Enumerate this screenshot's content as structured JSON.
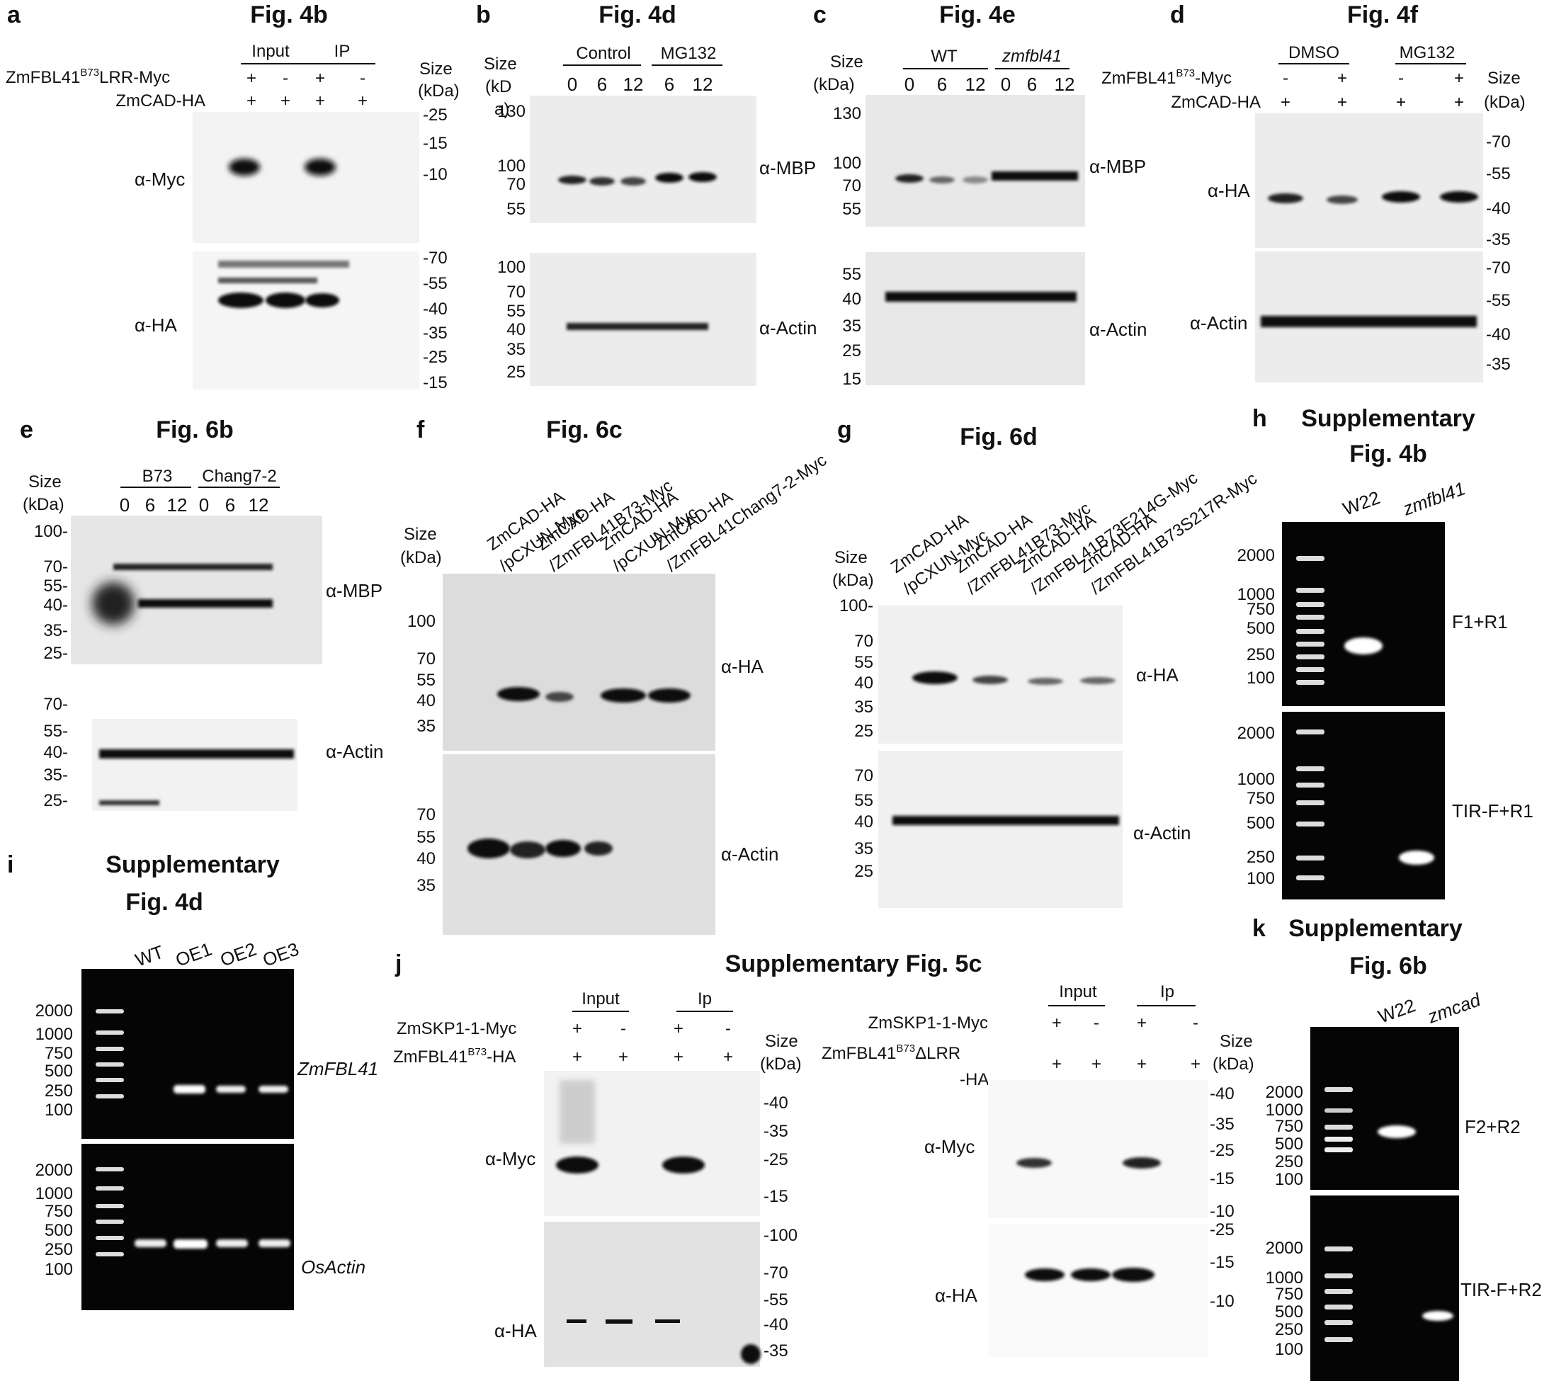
{
  "figure": {
    "panels": [
      {
        "id": "a",
        "label": "a",
        "title": "Fig. 4b",
        "groups": [
          "Input",
          "IP"
        ],
        "rows": [
          {
            "label": "ZmFBL41",
            "sup": "B73",
            "suffix": "LRR-Myc",
            "signs": [
              "+",
              "-",
              "+",
              "-"
            ]
          },
          {
            "label": "ZmCAD-HA",
            "signs": [
              "+",
              "+",
              "+",
              "+"
            ]
          }
        ],
        "size_label": [
          "Size",
          "(kDa)"
        ],
        "blots": [
          {
            "antibody": "α-Myc",
            "markers": [
              "-25",
              "-15",
              "-10"
            ]
          },
          {
            "antibody": "α-HA",
            "markers": [
              "-70",
              "-55",
              "-40",
              "-35",
              "-25",
              "-15"
            ]
          }
        ]
      },
      {
        "id": "b",
        "label": "b",
        "title": "Fig. 4d",
        "size_label": [
          "Size",
          "(kD",
          "a)"
        ],
        "groups": [
          "Control",
          "MG132"
        ],
        "lanes": [
          "0",
          "6",
          "12",
          "6",
          "12"
        ],
        "blots": [
          {
            "antibody": "α-MBP",
            "markers": [
              "130",
              "100",
              "70",
              "55"
            ]
          },
          {
            "antibody": "α-Actin",
            "markers": [
              "100",
              "70",
              "55",
              "40",
              "35",
              "25"
            ]
          }
        ]
      },
      {
        "id": "c",
        "label": "c",
        "title": "Fig. 4e",
        "size_label": [
          "Size",
          "(kDa)"
        ],
        "groups": [
          "WT",
          "zmfbl41"
        ],
        "lanes": [
          "0",
          "6",
          "12",
          "0",
          "6",
          "12"
        ],
        "blots": [
          {
            "antibody": "α-MBP",
            "markers": [
              "130",
              "100",
              "70",
              "55"
            ]
          },
          {
            "antibody": "α-Actin",
            "markers": [
              "55",
              "40",
              "35",
              "25",
              "15"
            ]
          }
        ]
      },
      {
        "id": "d",
        "label": "d",
        "title": "Fig. 4f",
        "groups": [
          "DMSO",
          "MG132"
        ],
        "rows": [
          {
            "label": "ZmFBL41",
            "sup": "B73",
            "suffix": "-Myc",
            "signs": [
              "-",
              "+",
              "-",
              "+"
            ]
          },
          {
            "label": "ZmCAD-HA",
            "signs": [
              "+",
              "+",
              "+",
              "+"
            ]
          }
        ],
        "size_label": [
          "Size",
          "(kDa)"
        ],
        "blots": [
          {
            "antibody": "α-HA",
            "markers": [
              "-70",
              "-55",
              "-40",
              "-35"
            ]
          },
          {
            "antibody": "α-Actin",
            "markers": [
              "-70",
              "-55",
              "-40",
              "-35"
            ]
          }
        ]
      },
      {
        "id": "e",
        "label": "e",
        "title": "Fig. 6b",
        "size_label": [
          "Size",
          "(kDa)"
        ],
        "groups": [
          "B73",
          "Chang7-2"
        ],
        "lanes": [
          "0",
          "6",
          "12",
          "0",
          "6",
          "12"
        ],
        "blots": [
          {
            "antibody": "α-MBP",
            "markers": [
              "100-",
              "70-",
              "55-",
              "40-",
              "35-",
              "25-"
            ]
          },
          {
            "antibody": "α-Actin",
            "markers": [
              "70-",
              "55-",
              "40-",
              "35-",
              "25-"
            ]
          }
        ]
      },
      {
        "id": "f",
        "label": "f",
        "title": "Fig. 6c",
        "size_label": [
          "Size",
          "(kDa)"
        ],
        "lane_labels": [
          "ZmCAD-HA",
          "/pCXUN-Myc",
          "ZmCAD-HA",
          "/ZmFBL41B73-Myc",
          "ZmCAD-HA",
          "/pCXUN-Myc",
          "ZmCAD-HA",
          "/ZmFBL41Chang7-2-Myc"
        ],
        "blots": [
          {
            "antibody": "α-HA",
            "markers": [
              "100",
              "70",
              "55",
              "40",
              "35"
            ]
          },
          {
            "antibody": "α-Actin",
            "markers": [
              "70",
              "55",
              "40",
              "35"
            ]
          }
        ]
      },
      {
        "id": "g",
        "label": "g",
        "title": "Fig. 6d",
        "size_label": [
          "Size",
          "(kDa)"
        ],
        "lane_labels": [
          "ZmCAD-HA",
          "/pCXUN-Myc",
          "ZmCAD-HA",
          "/ZmFBL41B73-Myc",
          "ZmCAD-HA",
          "/ZmFBL41B73E214G-Myc",
          "ZmCAD-HA",
          "/ZmFBL41B73S217R-Myc"
        ],
        "blots": [
          {
            "antibody": "α-HA",
            "markers": [
              "100-",
              "70",
              "55",
              "40",
              "35",
              "25"
            ]
          },
          {
            "antibody": "α-Actin",
            "markers": [
              "70",
              "55",
              "40",
              "35",
              "25"
            ]
          }
        ]
      },
      {
        "id": "h",
        "label": "h",
        "title": [
          "Supplementary",
          "Fig. 4b"
        ],
        "lanes": [
          "W22",
          "zmfbl41"
        ],
        "gels": [
          {
            "primer": "F1+R1",
            "markers": [
              "2000",
              "1000",
              "750",
              "500",
              "250",
              "100"
            ]
          },
          {
            "primer": "TIR-F+R1",
            "markers": [
              "2000",
              "1000",
              "750",
              "500",
              "250",
              "100"
            ]
          }
        ]
      },
      {
        "id": "i",
        "label": "i",
        "title": [
          "Supplementary",
          "Fig. 4d"
        ],
        "lanes": [
          "WT",
          "OE1",
          "OE2",
          "OE3"
        ],
        "gels": [
          {
            "gene": "ZmFBL41",
            "markers": [
              "2000",
              "1000",
              "750",
              "500",
              "250",
              "100"
            ]
          },
          {
            "gene": "OsActin",
            "markers": [
              "2000",
              "1000",
              "750",
              "500",
              "250",
              "100"
            ]
          }
        ]
      },
      {
        "id": "j",
        "label": "j",
        "title": "Supplementary Fig. 5c",
        "left": {
          "groups": [
            "Input",
            "Ip"
          ],
          "rows": [
            {
              "label": "ZmSKP1-1-Myc",
              "signs": [
                "+",
                "-",
                "+",
                "-"
              ]
            },
            {
              "label": "ZmFBL41",
              "sup": "B73",
              "suffix": "-HA",
              "signs": [
                "+",
                "+",
                "+",
                "+"
              ]
            }
          ],
          "size_label": [
            "Size",
            "(kDa)"
          ],
          "blots": [
            {
              "antibody": "α-Myc",
              "markers": [
                "-40",
                "-35",
                "-25",
                "-15"
              ]
            },
            {
              "antibody": "α-HA",
              "markers": [
                "-100",
                "-70",
                "-55",
                "-40",
                "-35"
              ]
            }
          ]
        },
        "right": {
          "groups": [
            "Input",
            "Ip"
          ],
          "rows": [
            {
              "label": "ZmSKP1-1-Myc",
              "signs": [
                "+",
                "-",
                "+",
                "-"
              ]
            },
            {
              "label": "ZmFBL41",
              "sup": "B73",
              "suffix": "ΔLRR",
              "label2": "-HA",
              "signs": [
                "+",
                "+",
                "+",
                "+"
              ]
            }
          ],
          "size_label": [
            "Size",
            "(kDa)"
          ],
          "blots": [
            {
              "antibody": "α-Myc",
              "markers": [
                "-40",
                "-35",
                "-25",
                "-15",
                "-10"
              ]
            },
            {
              "antibody": "α-HA",
              "markers": [
                "-25",
                "-15",
                "-10"
              ]
            }
          ]
        }
      },
      {
        "id": "k",
        "label": "k",
        "title": [
          "Supplementary",
          "Fig. 6b"
        ],
        "lanes": [
          "W22",
          "zmcad"
        ],
        "gels": [
          {
            "primer": "F2+R2",
            "markers": [
              "2000",
              "1000",
              "750",
              "500",
              "250",
              "100"
            ]
          },
          {
            "primer": "TIR-F+R2",
            "markers": [
              "2000",
              "1000",
              "750",
              "500",
              "250",
              "100"
            ]
          }
        ]
      }
    ]
  }
}
